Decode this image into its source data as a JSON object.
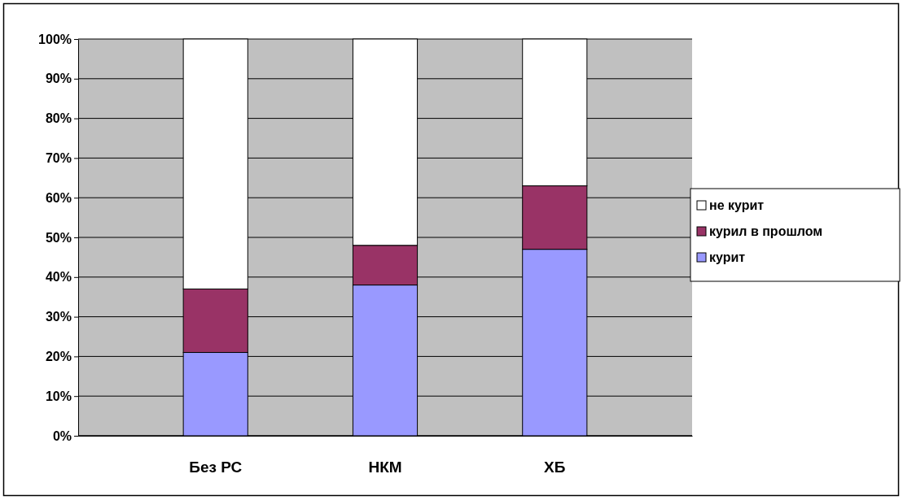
{
  "chart_data": {
    "type": "bar",
    "stacked": true,
    "categories": [
      "Без РС",
      "НКМ",
      "ХБ"
    ],
    "series": [
      {
        "name": "курит",
        "color": "#9999ff",
        "values": [
          21,
          38,
          47
        ]
      },
      {
        "name": "курил в прошлом",
        "color": "#993366",
        "values": [
          16,
          10,
          16
        ]
      },
      {
        "name": "не курит",
        "color": "#ffffff",
        "values": [
          63,
          52,
          37
        ]
      }
    ],
    "ylim": [
      0,
      100
    ],
    "yticks": [
      {
        "value": 0,
        "label": "0%"
      },
      {
        "value": 10,
        "label": "10%"
      },
      {
        "value": 20,
        "label": "20%"
      },
      {
        "value": 30,
        "label": "30%"
      },
      {
        "value": 40,
        "label": "40%"
      },
      {
        "value": 50,
        "label": "50%"
      },
      {
        "value": 60,
        "label": "60%"
      },
      {
        "value": 70,
        "label": "70%"
      },
      {
        "value": 80,
        "label": "80%"
      },
      {
        "value": 90,
        "label": "90%"
      },
      {
        "value": 100,
        "label": "100%"
      }
    ],
    "grid": "y",
    "legend": "right"
  }
}
